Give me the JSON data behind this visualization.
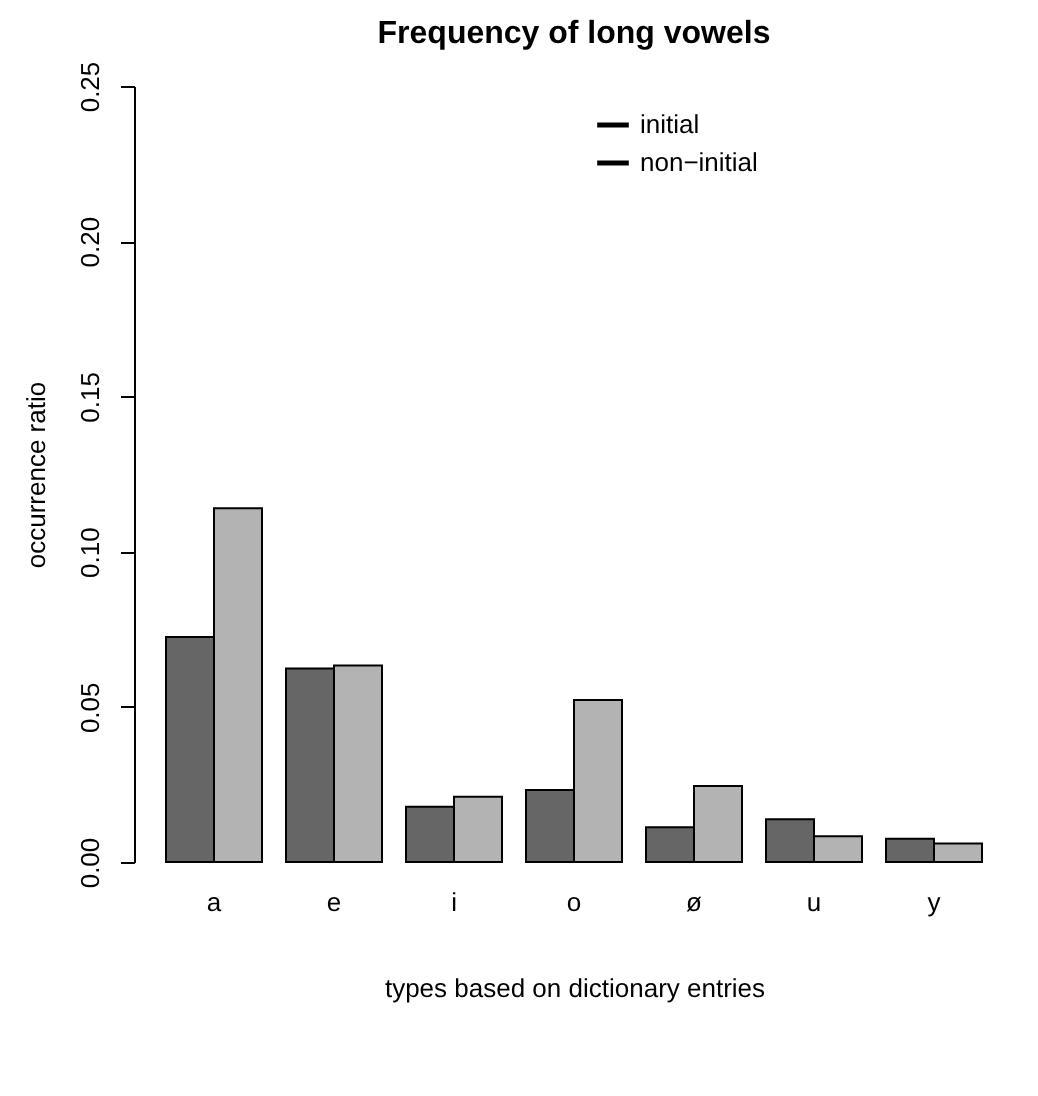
{
  "chart_data": {
    "type": "bar",
    "title": "Frequency of long vowels",
    "xlabel": "types based on dictionary entries",
    "ylabel": "occurrence ratio",
    "categories": [
      "a",
      "e",
      "i",
      "o",
      "ø",
      "u",
      "y"
    ],
    "series": [
      {
        "name": "initial",
        "color": "#666666",
        "values": [
          0.0725,
          0.0623,
          0.0178,
          0.0232,
          0.0112,
          0.0138,
          0.0075
        ]
      },
      {
        "name": "non−initial",
        "color": "#b3b3b3",
        "values": [
          0.114,
          0.0633,
          0.021,
          0.0522,
          0.0245,
          0.0083,
          0.006
        ]
      }
    ],
    "ylim": [
      0,
      0.25
    ],
    "yticks": [
      {
        "value": 0,
        "label": "0.00"
      },
      {
        "value": 0.05,
        "label": "0.05"
      },
      {
        "value": 0.1,
        "label": "0.10"
      },
      {
        "value": 0.15,
        "label": "0.15"
      },
      {
        "value": 0.2,
        "label": "0.20"
      },
      {
        "value": 0.25,
        "label": "0.25"
      }
    ],
    "grid": false,
    "legend": "top"
  }
}
